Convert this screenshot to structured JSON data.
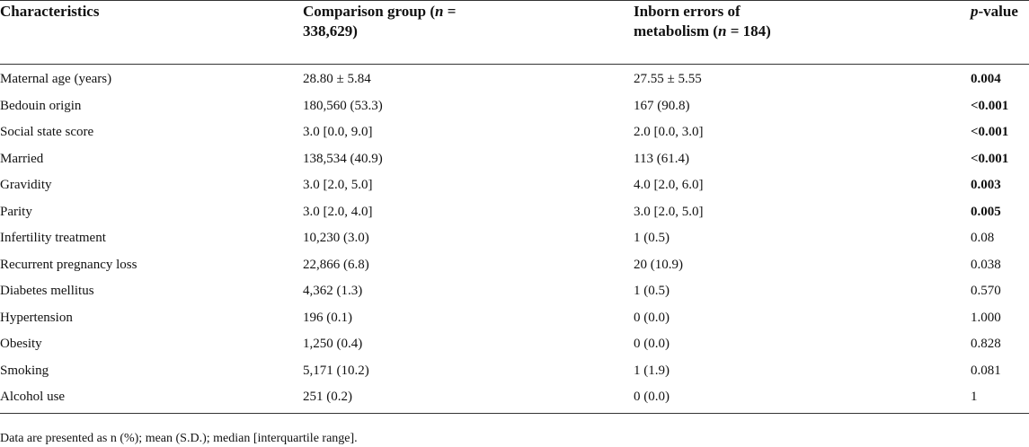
{
  "table": {
    "header": {
      "characteristics": "Characteristics",
      "comparison": [
        "Comparison group (",
        "n",
        " =",
        "338,629)"
      ],
      "iem": [
        "Inborn errors of",
        "metabolism (",
        "n",
        " = 184)"
      ],
      "p_value": [
        "p",
        "-value"
      ]
    },
    "rows": [
      {
        "characteristic": "Maternal age (years)",
        "comparison": "28.80 ± 5.84",
        "iem": "27.55 ± 5.55",
        "p_value": "0.004",
        "bold": true
      },
      {
        "characteristic": "Bedouin origin",
        "comparison": "180,560 (53.3)",
        "iem": "167 (90.8)",
        "p_value": "<0.001",
        "bold": true
      },
      {
        "characteristic": "Social state score",
        "comparison": "3.0 [0.0, 9.0]",
        "iem": "2.0 [0.0, 3.0]",
        "p_value": "<0.001",
        "bold": true
      },
      {
        "characteristic": "Married",
        "comparison": "138,534 (40.9)",
        "iem": "113 (61.4)",
        "p_value": "<0.001",
        "bold": true
      },
      {
        "characteristic": "Gravidity",
        "comparison": "3.0 [2.0, 5.0]",
        "iem": "4.0 [2.0, 6.0]",
        "p_value": "0.003",
        "bold": true
      },
      {
        "characteristic": "Parity",
        "comparison": "3.0 [2.0, 4.0]",
        "iem": "3.0 [2.0, 5.0]",
        "p_value": "0.005",
        "bold": true
      },
      {
        "characteristic": "Infertility treatment",
        "comparison": "10,230 (3.0)",
        "iem": "1 (0.5)",
        "p_value": "0.08",
        "bold": false
      },
      {
        "characteristic": "Recurrent pregnancy loss",
        "comparison": "22,866 (6.8)",
        "iem": "20 (10.9)",
        "p_value": "0.038",
        "bold": false
      },
      {
        "characteristic": "Diabetes mellitus",
        "comparison": "4,362 (1.3)",
        "iem": "1 (0.5)",
        "p_value": "0.570",
        "bold": false
      },
      {
        "characteristic": "Hypertension",
        "comparison": "196 (0.1)",
        "iem": "0 (0.0)",
        "p_value": "1.000",
        "bold": false
      },
      {
        "characteristic": "Obesity",
        "comparison": "1,250 (0.4)",
        "iem": "0 (0.0)",
        "p_value": "0.828",
        "bold": false
      },
      {
        "characteristic": "Smoking",
        "comparison": "5,171 (10.2)",
        "iem": "1 (1.9)",
        "p_value": "0.081",
        "bold": false
      },
      {
        "characteristic": "Alcohol use",
        "comparison": "251 (0.2)",
        "iem": "0 (0.0)",
        "p_value": "1",
        "bold": false
      }
    ],
    "footnote": "Data are presented as n (%); mean (S.D.); median [interquartile range]."
  }
}
